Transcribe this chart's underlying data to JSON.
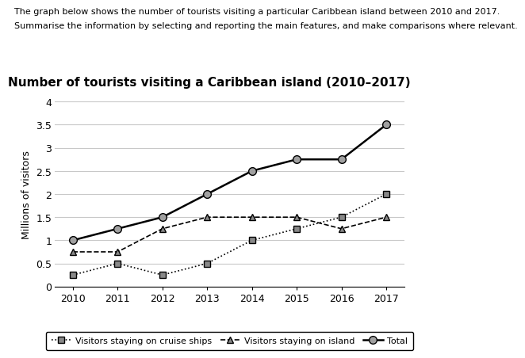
{
  "title": "Number of tourists visiting a Caribbean island (2010–2017)",
  "ylabel": "Millions of visitors",
  "header_line1": "The graph below shows the number of tourists visiting a particular Caribbean island between 2010 and 2017.",
  "header_line2": "Summarise the information by selecting and reporting the main features, and make comparisons where relevant.",
  "years": [
    2010,
    2011,
    2012,
    2013,
    2014,
    2015,
    2016,
    2017
  ],
  "cruise_ships": [
    0.25,
    0.5,
    0.25,
    0.5,
    1.0,
    1.25,
    1.5,
    2.0
  ],
  "on_island": [
    0.75,
    0.75,
    1.25,
    1.5,
    1.5,
    1.5,
    1.25,
    1.5
  ],
  "total": [
    1.0,
    1.25,
    1.5,
    2.0,
    2.5,
    2.75,
    2.75,
    3.5
  ],
  "ylim": [
    0,
    4
  ],
  "yticks": [
    0,
    0.5,
    1.0,
    1.5,
    2.0,
    2.5,
    3.0,
    3.5,
    4.0
  ],
  "background_color": "#ffffff",
  "grid_color": "#c8c8c8",
  "line_color": "#000000",
  "total_marker_fill": "#a0a0a0",
  "cruise_marker": "s",
  "island_marker": "^",
  "total_marker": "o",
  "cruise_linestyle": "dotted",
  "island_linestyle": "dashed",
  "total_linestyle": "solid",
  "legend_cruise": "Visitors staying on cruise ships",
  "legend_island": "Visitors staying on island",
  "legend_total": "Total",
  "title_fontsize": 11,
  "label_fontsize": 9,
  "tick_fontsize": 9,
  "header_fontsize": 8,
  "legend_fontsize": 8
}
